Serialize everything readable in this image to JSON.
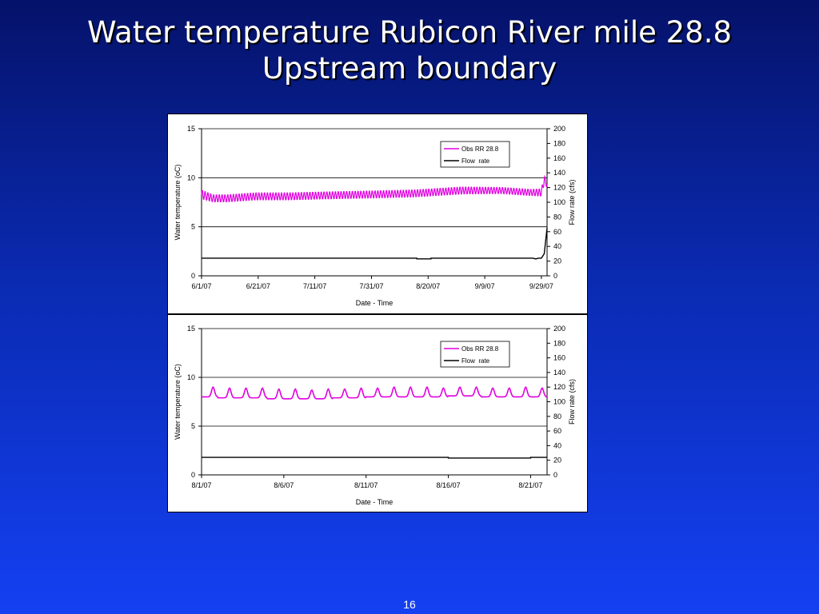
{
  "slide": {
    "title_line1": "Water temperature Rubicon River mile 28.8",
    "title_line2": "Upstream boundary",
    "page_number": "16"
  },
  "colors": {
    "temperature_series": "#e000e0",
    "flow_series": "#000000",
    "background_top": "#05126a",
    "background_bottom": "#1440f2"
  },
  "chart_data": [
    {
      "type": "line",
      "xlabel": "Date - Time",
      "ylabel": "Water temperature (oC)",
      "y2label": "Flow rate (cfs)",
      "ylim": [
        0,
        15
      ],
      "y2lim": [
        0,
        200
      ],
      "yticks": [
        "0",
        "5",
        "10",
        "15"
      ],
      "y2ticks": [
        "0",
        "20",
        "40",
        "60",
        "80",
        "100",
        "120",
        "140",
        "160",
        "180",
        "200"
      ],
      "xlim": [
        "2007-06-01",
        "2007-10-01"
      ],
      "xticks": [
        "6/1/07",
        "6/21/07",
        "7/11/07",
        "7/31/07",
        "8/20/07",
        "9/9/07",
        "9/29/07"
      ],
      "xtick_dates": [
        "2007-06-01",
        "2007-06-21",
        "2007-07-11",
        "2007-07-31",
        "2007-08-20",
        "2007-09-09",
        "2007-09-29"
      ],
      "grid": "horizontal",
      "legend": "top-right",
      "series": [
        {
          "name": "Obs RR 28.8",
          "axis": "left",
          "style": "diurnal-band",
          "x": [
            "2007-06-01",
            "2007-06-05",
            "2007-06-10",
            "2007-06-20",
            "2007-07-01",
            "2007-07-15",
            "2007-08-01",
            "2007-08-15",
            "2007-09-01",
            "2007-09-15",
            "2007-09-25",
            "2007-09-29",
            "2007-09-30",
            "2007-10-01"
          ],
          "mean": [
            8.3,
            7.9,
            7.9,
            8.1,
            8.1,
            8.2,
            8.3,
            8.4,
            8.7,
            8.7,
            8.5,
            8.5,
            9.8,
            9.3
          ],
          "amplitude": [
            0.5,
            0.4,
            0.4,
            0.4,
            0.4,
            0.4,
            0.4,
            0.4,
            0.4,
            0.35,
            0.35,
            0.4,
            0.5,
            0.3
          ]
        },
        {
          "name": "Flow  rate",
          "axis": "right",
          "x": [
            "2007-06-01",
            "2007-08-16",
            "2007-08-16",
            "2007-08-21",
            "2007-08-21",
            "2007-09-26",
            "2007-09-27",
            "2007-09-28",
            "2007-09-29",
            "2007-09-30",
            "2007-10-01"
          ],
          "y": [
            24,
            24,
            23,
            23,
            24,
            24,
            23,
            24,
            24,
            30,
            65
          ]
        }
      ]
    },
    {
      "type": "line",
      "xlabel": "Date - Time",
      "ylabel": "Water temperature (oC)",
      "y2label": "Flow rate (cfs)",
      "ylim": [
        0,
        15
      ],
      "y2lim": [
        0,
        200
      ],
      "yticks": [
        "0",
        "5",
        "10",
        "15"
      ],
      "y2ticks": [
        "0",
        "20",
        "40",
        "60",
        "80",
        "100",
        "120",
        "140",
        "160",
        "180",
        "200"
      ],
      "xlim": [
        "2007-08-01",
        "2007-08-22"
      ],
      "xticks": [
        "8/1/07",
        "8/6/07",
        "8/11/07",
        "8/16/07",
        "8/21/07"
      ],
      "xtick_dates": [
        "2007-08-01",
        "2007-08-06",
        "2007-08-11",
        "2007-08-16",
        "2007-08-21"
      ],
      "grid": "horizontal",
      "legend": "top-right",
      "series": [
        {
          "name": "Obs RR 28.8",
          "axis": "left",
          "style": "diurnal-peaks",
          "days": [
            "2007-08-01",
            "2007-08-02",
            "2007-08-03",
            "2007-08-04",
            "2007-08-05",
            "2007-08-06",
            "2007-08-07",
            "2007-08-08",
            "2007-08-09",
            "2007-08-10",
            "2007-08-11",
            "2007-08-12",
            "2007-08-13",
            "2007-08-14",
            "2007-08-15",
            "2007-08-16",
            "2007-08-17",
            "2007-08-18",
            "2007-08-19",
            "2007-08-20",
            "2007-08-21"
          ],
          "daily_min": [
            8.0,
            7.9,
            7.9,
            7.9,
            7.8,
            7.8,
            7.8,
            7.8,
            7.9,
            7.9,
            8.0,
            8.0,
            8.0,
            8.0,
            8.0,
            8.1,
            8.1,
            8.0,
            8.0,
            8.0,
            8.0
          ],
          "daily_max": [
            9.0,
            8.9,
            8.9,
            8.9,
            8.8,
            8.8,
            8.7,
            8.8,
            8.8,
            8.9,
            8.9,
            9.0,
            9.0,
            9.0,
            8.9,
            9.0,
            9.0,
            8.9,
            8.9,
            9.0,
            8.9
          ]
        },
        {
          "name": "Flow  rate",
          "axis": "right",
          "x": [
            "2007-08-01",
            "2007-08-16",
            "2007-08-16",
            "2007-08-21",
            "2007-08-21",
            "2007-08-22"
          ],
          "y": [
            24,
            24,
            23,
            23,
            24,
            24
          ]
        }
      ]
    }
  ]
}
